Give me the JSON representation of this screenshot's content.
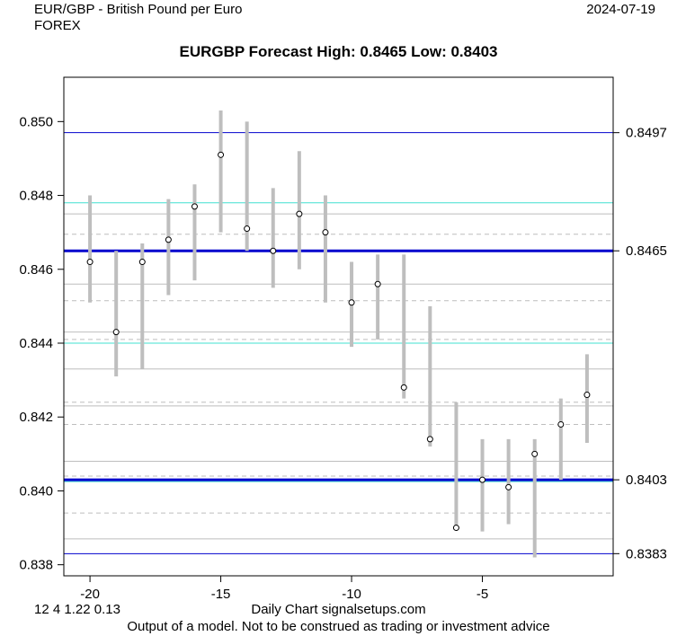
{
  "header": {
    "ticker": "EUR/GBP - British Pound per Euro",
    "market": "FOREX",
    "date": "2024-07-19"
  },
  "footer": {
    "params": "12 4 1.22 0.13",
    "source": "Daily Chart signalsetups.com",
    "disclaimer": "Output of a model. Not to be construed as trading or investment advice"
  },
  "chart_data": {
    "type": "scatter",
    "title": "EURGBP Forecast High: 0.8465 Low: 0.8403",
    "xlim": [
      -21,
      0
    ],
    "ylim": [
      0.8377,
      0.8512
    ],
    "x_ticks": [
      -20,
      -15,
      -10,
      -5
    ],
    "x_tick_labels": [
      "-20",
      "-15",
      "-10",
      "-5"
    ],
    "y_ticks": [
      0.838,
      0.84,
      0.842,
      0.844,
      0.846,
      0.848,
      0.85
    ],
    "y_tick_labels": [
      "0.838",
      "0.840",
      "0.842",
      "0.844",
      "0.846",
      "0.848",
      "0.850"
    ],
    "bars": [
      {
        "x": -20,
        "low": 0.8451,
        "high": 0.848,
        "close": 0.8462
      },
      {
        "x": -19,
        "low": 0.8431,
        "high": 0.8465,
        "close": 0.8443
      },
      {
        "x": -18,
        "low": 0.8433,
        "high": 0.8467,
        "close": 0.8462
      },
      {
        "x": -17,
        "low": 0.8453,
        "high": 0.8479,
        "close": 0.8468
      },
      {
        "x": -16,
        "low": 0.8457,
        "high": 0.8483,
        "close": 0.8477
      },
      {
        "x": -15,
        "low": 0.847,
        "high": 0.8503,
        "close": 0.8491
      },
      {
        "x": -14,
        "low": 0.8465,
        "high": 0.85,
        "close": 0.8471
      },
      {
        "x": -13,
        "low": 0.8455,
        "high": 0.8482,
        "close": 0.8465
      },
      {
        "x": -12,
        "low": 0.846,
        "high": 0.8492,
        "close": 0.8475
      },
      {
        "x": -11,
        "low": 0.8451,
        "high": 0.848,
        "close": 0.847
      },
      {
        "x": -10,
        "low": 0.8439,
        "high": 0.8462,
        "close": 0.8451
      },
      {
        "x": -9,
        "low": 0.8441,
        "high": 0.8464,
        "close": 0.8456
      },
      {
        "x": -8,
        "low": 0.8425,
        "high": 0.8464,
        "close": 0.8428
      },
      {
        "x": -7,
        "low": 0.8412,
        "high": 0.845,
        "close": 0.8414
      },
      {
        "x": -6,
        "low": 0.839,
        "high": 0.8424,
        "close": 0.839
      },
      {
        "x": -5,
        "low": 0.8389,
        "high": 0.8414,
        "close": 0.8403
      },
      {
        "x": -4,
        "low": 0.8391,
        "high": 0.8414,
        "close": 0.8401
      },
      {
        "x": -3,
        "low": 0.8382,
        "high": 0.8414,
        "close": 0.841
      },
      {
        "x": -2,
        "low": 0.8403,
        "high": 0.8425,
        "close": 0.8418
      },
      {
        "x": -1,
        "low": 0.8413,
        "high": 0.8437,
        "close": 0.8426
      }
    ],
    "h_lines": [
      {
        "y": 0.8497,
        "color": "#0000cd",
        "weight": "thin",
        "label": "0.8497"
      },
      {
        "y": 0.8465,
        "color": "#0000cd",
        "weight": "thick",
        "label": "0.8465"
      },
      {
        "y": 0.8403,
        "color": "#0000cd",
        "weight": "thick",
        "label": "0.8403"
      },
      {
        "y": 0.8383,
        "color": "#0000cd",
        "weight": "thin",
        "label": "0.8383"
      },
      {
        "y": 0.8478,
        "color": "#40e0d0",
        "weight": "thin"
      },
      {
        "y": 0.844,
        "color": "#40e0d0",
        "weight": "thin"
      },
      {
        "y": 0.84025,
        "color": "#40e0d0",
        "weight": "thin"
      },
      {
        "y": 0.8475,
        "color": "#bebebe",
        "weight": "solid"
      },
      {
        "y": 0.84695,
        "color": "#bebebe",
        "weight": "dashed"
      },
      {
        "y": 0.8456,
        "color": "#bebebe",
        "weight": "solid"
      },
      {
        "y": 0.84515,
        "color": "#bebebe",
        "weight": "dashed"
      },
      {
        "y": 0.8443,
        "color": "#bebebe",
        "weight": "solid"
      },
      {
        "y": 0.8441,
        "color": "#bebebe",
        "weight": "dashed"
      },
      {
        "y": 0.8433,
        "color": "#bebebe",
        "weight": "solid"
      },
      {
        "y": 0.8424,
        "color": "#bebebe",
        "weight": "dashed"
      },
      {
        "y": 0.8423,
        "color": "#bebebe",
        "weight": "solid"
      },
      {
        "y": 0.8418,
        "color": "#bebebe",
        "weight": "dashed"
      },
      {
        "y": 0.8408,
        "color": "#bebebe",
        "weight": "solid"
      },
      {
        "y": 0.8404,
        "color": "#bebebe",
        "weight": "dashed"
      },
      {
        "y": 0.8394,
        "color": "#bebebe",
        "weight": "dashed"
      },
      {
        "y": 0.8387,
        "color": "#bebebe",
        "weight": "solid"
      }
    ],
    "colors": {
      "bars": "#bebebe",
      "points": "#000000"
    }
  }
}
